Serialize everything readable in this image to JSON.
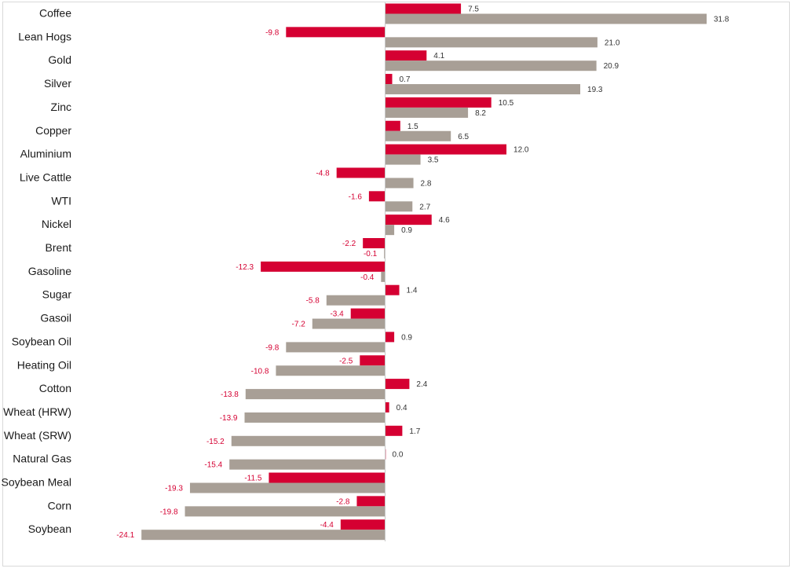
{
  "chart_data": {
    "type": "bar",
    "orientation": "horizontal",
    "categories": [
      "Coffee",
      "Lean Hogs",
      "Gold",
      "Silver",
      "Zinc",
      "Copper",
      "Aluminium",
      "Live Cattle",
      "WTI",
      "Nickel",
      "Brent",
      "Gasoline",
      "Sugar",
      "Gasoil",
      "Soybean Oil",
      "Heating Oil",
      "Cotton",
      "Wheat (HRW)",
      "Wheat (SRW)",
      "Natural Gas",
      "Soybean Meal",
      "Corn",
      "Soybean"
    ],
    "series": [
      {
        "color": "#d50032",
        "values": [
          7.5,
          -9.8,
          4.1,
          0.7,
          10.5,
          1.5,
          12.0,
          -4.8,
          -1.6,
          4.6,
          -2.2,
          -12.3,
          1.4,
          -3.4,
          0.9,
          -2.5,
          2.4,
          0.4,
          1.7,
          0.0,
          -11.5,
          -2.8,
          -4.4
        ]
      },
      {
        "color": "#a89f96",
        "values": [
          31.8,
          21.0,
          20.9,
          19.3,
          8.2,
          6.5,
          3.5,
          2.8,
          2.7,
          0.9,
          -0.1,
          -0.4,
          -5.8,
          -7.2,
          -9.8,
          -10.8,
          -13.8,
          -13.9,
          -15.2,
          -15.4,
          -19.3,
          -19.8,
          -24.1
        ]
      }
    ],
    "title": "",
    "xlabel": "",
    "ylabel": "",
    "xlim": [
      -24.1,
      31.8
    ],
    "grid": false,
    "legend": "none",
    "positive_label_color": "#333333",
    "negative_label_color": "#d50032",
    "axis_color": "#c8c8c8"
  }
}
